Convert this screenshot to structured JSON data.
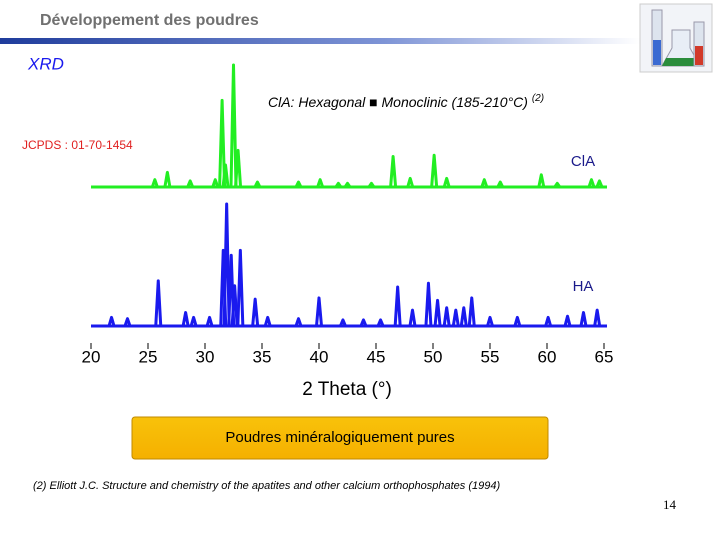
{
  "header": {
    "title": "Développement des poudres"
  },
  "chart_data": {
    "type": "xrd",
    "title": "XRD",
    "annotation": "ClA: Hexagonal ■ Monoclinic (185-210°C)",
    "annotation_ref": "(2)",
    "reference": "JCPDS : 01-70-1454",
    "x_label": "2 Theta (°)",
    "xlim": [
      20,
      65
    ],
    "xticks": [
      20,
      25,
      30,
      35,
      40,
      45,
      50,
      55,
      60,
      65
    ],
    "series": [
      {
        "name": "ClA",
        "color": "#22ee22",
        "x": [
          25.6,
          26.7,
          28.7,
          30.9,
          31.5,
          31.8,
          32.5,
          32.9,
          34.6,
          38.2,
          40.1,
          41.7,
          42.5,
          44.6,
          46.5,
          48.0,
          50.1,
          51.2,
          54.5,
          55.9,
          59.5,
          60.9,
          63.9,
          64.6
        ],
        "values": [
          6,
          12,
          5,
          6,
          71,
          18,
          100,
          30,
          4,
          4,
          6,
          3,
          3,
          3,
          25,
          7,
          26,
          7,
          6,
          4,
          10,
          3,
          6,
          5
        ]
      },
      {
        "name": "HA",
        "color": "#1a1aee",
        "x": [
          21.8,
          23.2,
          25.9,
          28.3,
          29.0,
          30.4,
          31.6,
          31.9,
          32.3,
          32.6,
          33.1,
          34.4,
          35.5,
          38.2,
          40.0,
          42.1,
          43.9,
          45.4,
          46.9,
          48.2,
          49.6,
          50.4,
          51.2,
          52.0,
          52.7,
          53.4,
          55.0,
          57.4,
          60.1,
          61.8,
          63.2,
          64.4
        ],
        "values": [
          7,
          6,
          37,
          11,
          7,
          7,
          62,
          100,
          58,
          33,
          62,
          22,
          7,
          6,
          23,
          5,
          5,
          5,
          32,
          13,
          35,
          21,
          15,
          13,
          15,
          23,
          7,
          7,
          7,
          8,
          11,
          13
        ]
      }
    ]
  },
  "callout": "Poudres minéralogiquement pures",
  "footnote": "(2) Elliott J.C. Structure and chemistry of the apatites and other calcium orthophosphates (1994)",
  "page_number": "14"
}
